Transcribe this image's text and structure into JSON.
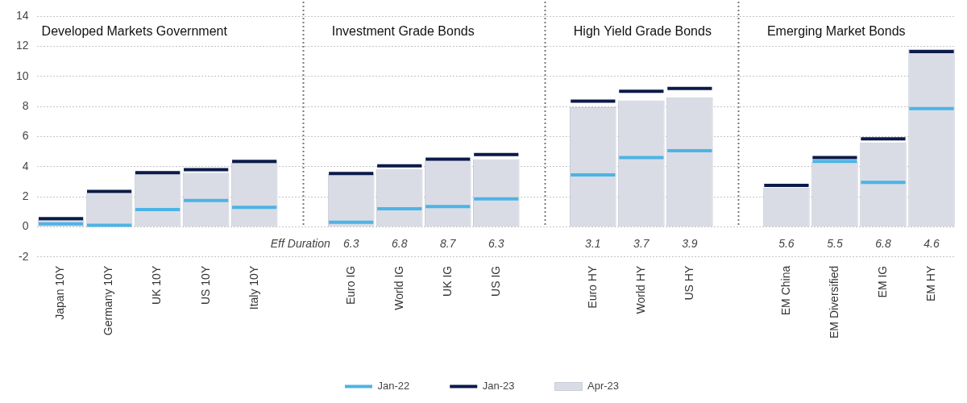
{
  "chart_data": {
    "type": "bar",
    "groups": [
      "Developed Markets Government",
      "Investment Grade Bonds",
      "High Yield Grade Bonds",
      "Emerging Market Bonds"
    ],
    "categories": [
      "Japan 10Y",
      "Germany 10Y",
      "UK 10Y",
      "US 10Y",
      "Italy 10Y",
      null,
      "Euro IG",
      "World IG",
      "UK IG",
      "US IG",
      null,
      "Euro HY",
      "World HY",
      "US HY",
      null,
      "EM China",
      "EM Diversified",
      "EM IG",
      "EM HY"
    ],
    "series": [
      {
        "name": "Jan-22",
        "type": "line",
        "marker": "line",
        "line_style": "none",
        "color": "#4db3e6",
        "values": [
          0.2,
          0.1,
          1.15,
          1.75,
          1.3,
          null,
          0.3,
          1.2,
          1.35,
          1.85,
          null,
          3.45,
          4.6,
          5.05,
          null,
          null,
          4.35,
          2.95,
          7.85
        ]
      },
      {
        "name": "Jan-23",
        "type": "line",
        "marker": "line",
        "line_style": "none",
        "color": "#0b1a4a",
        "values": [
          0.55,
          2.35,
          3.6,
          3.8,
          4.35,
          null,
          3.55,
          4.05,
          4.5,
          4.8,
          null,
          8.35,
          9.0,
          9.2,
          null,
          2.75,
          4.6,
          5.85,
          11.65
        ]
      },
      {
        "name": "Apr-23",
        "type": "bar",
        "color": "#d9dce5",
        "values": [
          0.45,
          2.25,
          3.7,
          3.6,
          4.25,
          null,
          3.5,
          3.85,
          4.4,
          4.5,
          null,
          7.95,
          8.4,
          8.6,
          null,
          2.6,
          4.3,
          5.6,
          11.8
        ]
      }
    ],
    "eff_duration": {
      "label": "Eff Duration",
      "values": [
        null,
        null,
        null,
        null,
        null,
        null,
        6.3,
        6.8,
        8.7,
        6.3,
        null,
        3.1,
        3.7,
        3.9,
        null,
        5.6,
        5.5,
        6.8,
        4.6
      ]
    },
    "ylim": [
      -2,
      14
    ],
    "yticks": [
      -2,
      0,
      2,
      4,
      6,
      8,
      10,
      12,
      14
    ],
    "grid": true,
    "legend": "bottom"
  }
}
